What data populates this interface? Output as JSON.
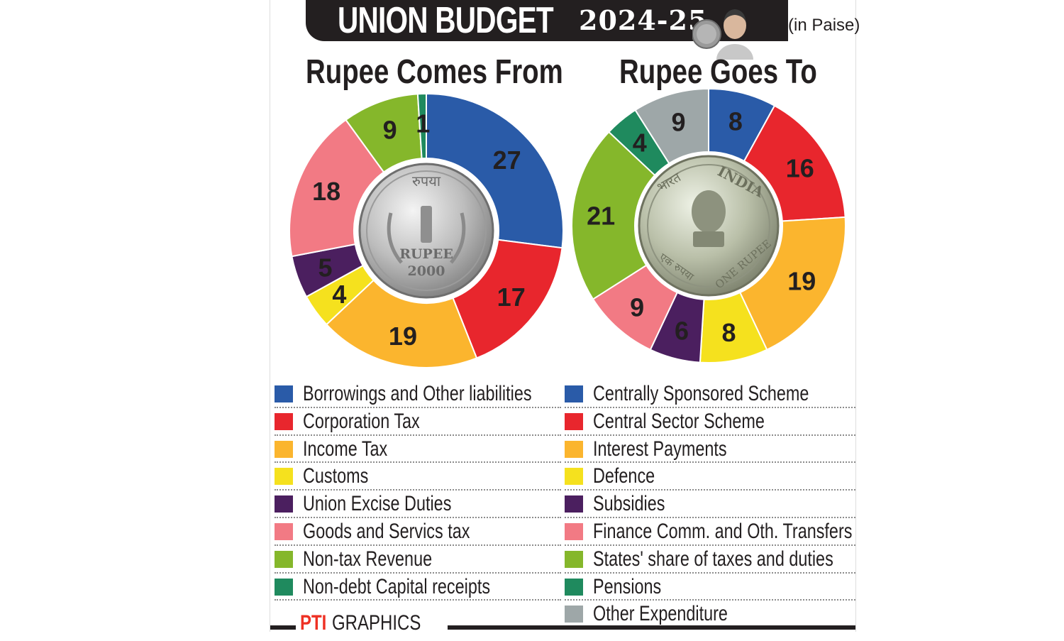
{
  "header": {
    "title": "UNION BUDGET",
    "year": "2024-25",
    "unit_note": "(in Paise)"
  },
  "credit": {
    "logo": "PTI",
    "text": "GRAPHICS"
  },
  "icons": [
    "rupee-coin-2000-icon",
    "india-one-rupee-coin-icon",
    "finance-minister-portrait-icon",
    "pti-logo-icon"
  ],
  "coin_left": {
    "text_top": "रुपया",
    "text_bottom": "RUPEE",
    "year": "2000"
  },
  "coin_right": {
    "text_top": "INDIA",
    "text_left": "भारत",
    "text_bottom": "ONE RUPEE",
    "text_bottom_hi": "एक रुपया"
  },
  "chart_data": [
    {
      "type": "pie",
      "style": "donut",
      "title": "Rupee Comes From",
      "unit": "Paise",
      "categories": [
        "Borrowings and Other liabilities",
        "Corporation Tax",
        "Income Tax",
        "Customs",
        "Union Excise Duties",
        "Goods and Servics tax",
        "Non-tax Revenue",
        "Non-debt Capital receipts"
      ],
      "values": [
        27,
        17,
        19,
        4,
        5,
        18,
        9,
        1
      ],
      "colors": [
        "#2a5ba8",
        "#e8262d",
        "#fbb52e",
        "#f5e11e",
        "#4b1f5f",
        "#f27a84",
        "#85b72b",
        "#1f8a5e"
      ],
      "start": "top, clockwise",
      "legend": "bottom-left"
    },
    {
      "type": "pie",
      "style": "donut",
      "title": "Rupee Goes To",
      "unit": "Paise",
      "categories": [
        "Centrally Sponsored Scheme",
        "Central Sector Scheme",
        "Interest Payments",
        "Defence",
        "Subsidies",
        "Finance Comm. and Oth. Transfers",
        "States' share of taxes and duties",
        "Pensions",
        "Other Expenditure"
      ],
      "values": [
        8,
        16,
        19,
        8,
        6,
        9,
        21,
        4,
        9
      ],
      "colors": [
        "#2a5ba8",
        "#e8262d",
        "#fbb52e",
        "#f5e11e",
        "#4b1f5f",
        "#f27a84",
        "#85b72b",
        "#1f8a5e",
        "#9ea7a8"
      ],
      "start": "top, clockwise",
      "legend": "bottom-right"
    }
  ]
}
